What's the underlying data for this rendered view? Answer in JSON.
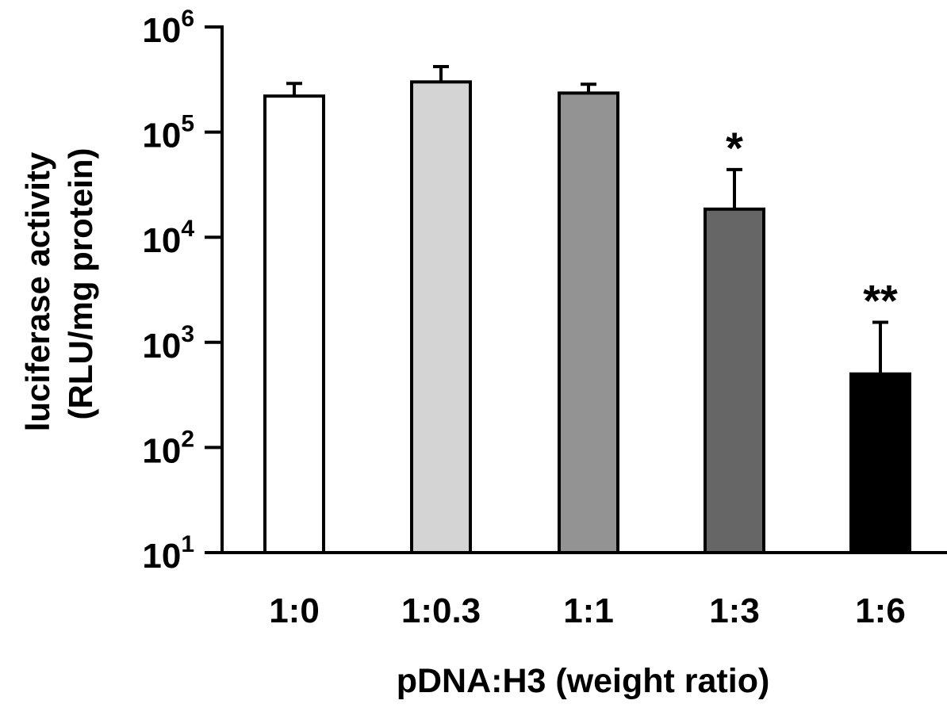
{
  "chart_data": {
    "type": "bar",
    "xlabel": "pDNA:H3 (weight ratio)",
    "ylabel_line1": "luciferase activity",
    "ylabel_line2": "(RLU/mg protein)",
    "yscale": "log",
    "ylim": [
      10,
      1000000
    ],
    "yticks": [
      {
        "value": 10,
        "base": "10",
        "exp": "1"
      },
      {
        "value": 100,
        "base": "10",
        "exp": "2"
      },
      {
        "value": 1000,
        "base": "10",
        "exp": "3"
      },
      {
        "value": 10000,
        "base": "10",
        "exp": "4"
      },
      {
        "value": 100000,
        "base": "10",
        "exp": "5"
      },
      {
        "value": 1000000,
        "base": "10",
        "exp": "6"
      }
    ],
    "categories": [
      "1:0",
      "1:0.3",
      "1:1",
      "1:3",
      "1:6"
    ],
    "values": [
      220000,
      300000,
      235000,
      18500,
      500
    ],
    "error_upper": [
      290000,
      420000,
      285000,
      44000,
      1550
    ],
    "annotations": [
      "",
      "",
      "",
      "*",
      "**"
    ],
    "colors": [
      "#ffffff",
      "#d4d4d4",
      "#939393",
      "#666666",
      "#000000"
    ],
    "grid": false,
    "legend": "none"
  }
}
